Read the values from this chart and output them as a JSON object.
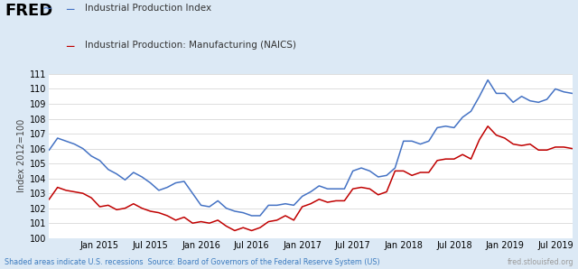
{
  "legend_blue": "Industrial Production Index",
  "legend_red": "Industrial Production: Manufacturing (NAICS)",
  "ylabel": "Index 2012=100",
  "footer_left": "Shaded areas indicate U.S. recessions  Source: Board of Governors of the Federal Reserve System (US)",
  "footer_right": "fred.stlouisfed.org",
  "bg_outer": "#dce9f5",
  "bg_inner": "#ffffff",
  "ylim": [
    100,
    111
  ],
  "yticks": [
    100,
    101,
    102,
    103,
    104,
    105,
    106,
    107,
    108,
    109,
    110,
    111
  ],
  "blue_color": "#4472c4",
  "red_color": "#c00000",
  "blue_values": [
    105.9,
    106.7,
    106.5,
    106.3,
    106.0,
    105.5,
    105.2,
    104.6,
    104.3,
    103.9,
    104.4,
    104.1,
    103.7,
    103.2,
    103.4,
    103.7,
    103.8,
    103.0,
    102.2,
    102.1,
    102.5,
    102.0,
    101.8,
    101.7,
    101.5,
    101.5,
    102.2,
    102.2,
    102.3,
    102.2,
    102.8,
    103.1,
    103.5,
    103.3,
    103.3,
    103.3,
    104.5,
    104.7,
    104.5,
    104.1,
    104.2,
    104.7,
    106.5,
    106.5,
    106.3,
    106.5,
    107.4,
    107.5,
    107.4,
    108.1,
    108.5,
    109.5,
    110.6,
    109.7,
    109.7,
    109.1,
    109.5,
    109.2,
    109.1,
    109.3,
    110.0,
    109.8,
    109.7
  ],
  "red_values": [
    102.6,
    103.4,
    103.2,
    103.1,
    103.0,
    102.7,
    102.1,
    102.2,
    101.9,
    102.0,
    102.3,
    102.0,
    101.8,
    101.7,
    101.5,
    101.2,
    101.4,
    101.0,
    101.1,
    101.0,
    101.2,
    100.8,
    100.5,
    100.7,
    100.5,
    100.7,
    101.1,
    101.2,
    101.5,
    101.2,
    102.1,
    102.3,
    102.6,
    102.4,
    102.5,
    102.5,
    103.3,
    103.4,
    103.3,
    102.9,
    103.1,
    104.5,
    104.5,
    104.2,
    104.4,
    104.4,
    105.2,
    105.3,
    105.3,
    105.6,
    105.3,
    106.6,
    107.5,
    106.9,
    106.7,
    106.3,
    106.2,
    106.3,
    105.9,
    105.9,
    106.1,
    106.1,
    106.0
  ],
  "x_tick_labels": [
    "Jan 2015",
    "Jul 2015",
    "Jan 2016",
    "Jul 2016",
    "Jan 2017",
    "Jul 2017",
    "Jan 2018",
    "Jul 2018",
    "Jan 2019",
    "Jul 2019"
  ],
  "x_tick_positions": [
    6,
    12,
    18,
    24,
    30,
    36,
    42,
    48,
    54,
    60
  ]
}
